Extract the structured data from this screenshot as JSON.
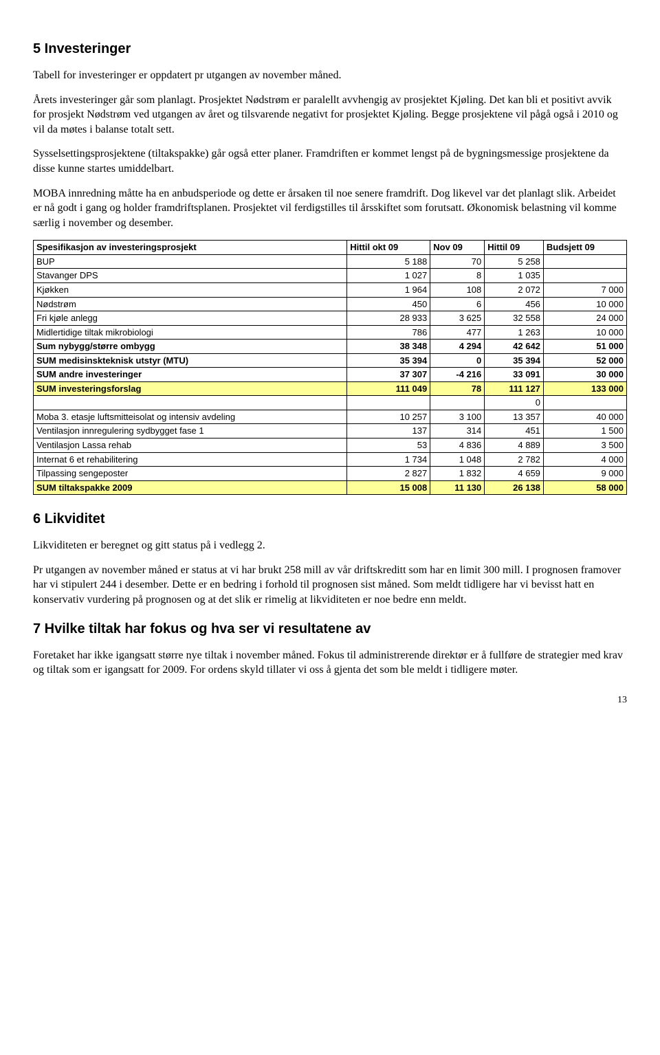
{
  "section5": {
    "title": "5 Investeringer",
    "p1": "Tabell for investeringer er oppdatert pr utgangen av november måned.",
    "p2": "Årets investeringer går som planlagt. Prosjektet Nødstrøm er paralellt avvhengig av prosjektet Kjøling. Det kan bli et positivt avvik for prosjekt Nødstrøm ved utgangen av året og tilsvarende negativt for prosjektet Kjøling. Begge prosjektene vil pågå også i 2010 og vil da møtes i balanse totalt sett.",
    "p3": "Sysselsettingsprosjektene (tiltakspakke) går også etter planer. Framdriften er kommet lengst på de bygningsmessige prosjektene da disse kunne startes umiddelbart.",
    "p4": "MOBA innredning måtte ha en anbudsperiode og dette er årsaken til noe senere framdrift. Dog likevel var det planlagt slik. Arbeidet er nå godt i gang og holder framdriftsplanen. Prosjektet vil ferdigstilles til årsskiftet som forutsatt. Økonomisk belastning vil komme særlig i november og desember."
  },
  "table": {
    "headers": [
      "Spesifikasjon av investeringsprosjekt",
      "Hittil okt 09",
      "Nov 09",
      "Hittil 09",
      "Budsjett 09"
    ],
    "rows": [
      {
        "label": "BUP",
        "v": [
          "5 188",
          "70",
          "5 258",
          ""
        ],
        "cls": ""
      },
      {
        "label": "Stavanger DPS",
        "v": [
          "1 027",
          "8",
          "1 035",
          ""
        ],
        "cls": ""
      },
      {
        "label": "Kjøkken",
        "v": [
          "1 964",
          "108",
          "2 072",
          "7 000"
        ],
        "cls": ""
      },
      {
        "label": "Nødstrøm",
        "v": [
          "450",
          "6",
          "456",
          "10 000"
        ],
        "cls": ""
      },
      {
        "label": "Fri kjøle anlegg",
        "v": [
          "28 933",
          "3 625",
          "32 558",
          "24 000"
        ],
        "cls": ""
      },
      {
        "label": "Midlertidige tiltak mikrobiologi",
        "v": [
          "786",
          "477",
          "1 263",
          "10 000"
        ],
        "cls": ""
      },
      {
        "label": "Sum nybygg/større ombygg",
        "v": [
          "38 348",
          "4 294",
          "42 642",
          "51 000"
        ],
        "cls": "bold"
      },
      {
        "label": "SUM medisinskteknisk utstyr (MTU)",
        "v": [
          "35 394",
          "0",
          "35 394",
          "52 000"
        ],
        "cls": "bold"
      },
      {
        "label": "SUM andre investeringer",
        "v": [
          "37 307",
          "-4 216",
          "33 091",
          "30 000"
        ],
        "cls": "bold"
      },
      {
        "label": "SUM investeringsforslag",
        "v": [
          "111 049",
          "78",
          "111 127",
          "133 000"
        ],
        "cls": "yellow"
      },
      {
        "label": "",
        "v": [
          "",
          "",
          "0",
          ""
        ],
        "cls": ""
      },
      {
        "label": "Moba 3. etasje luftsmitteisolat og intensiv avdeling",
        "v": [
          "10 257",
          "3 100",
          "13 357",
          "40 000"
        ],
        "cls": ""
      },
      {
        "label": "Ventilasjon innregulering sydbygget fase 1",
        "v": [
          "137",
          "314",
          "451",
          "1 500"
        ],
        "cls": ""
      },
      {
        "label": "Ventilasjon Lassa rehab",
        "v": [
          "53",
          "4 836",
          "4 889",
          "3 500"
        ],
        "cls": ""
      },
      {
        "label": "Internat 6 et rehabilitering",
        "v": [
          "1 734",
          "1 048",
          "2 782",
          "4 000"
        ],
        "cls": ""
      },
      {
        "label": "Tilpassing sengeposter",
        "v": [
          "2 827",
          "1 832",
          "4 659",
          "9 000"
        ],
        "cls": ""
      },
      {
        "label": "SUM tiltakspakke 2009",
        "v": [
          "15 008",
          "11 130",
          "26 138",
          "58 000"
        ],
        "cls": "yellow"
      }
    ]
  },
  "section6": {
    "title": "6 Likviditet",
    "p1": "Likviditeten er beregnet og gitt status på i vedlegg 2.",
    "p2": "Pr utgangen av november måned er status at vi har brukt 258 mill av vår driftskreditt som har en limit 300 mill. I prognosen framover har vi stipulert 244 i desember. Dette er en bedring i forhold til prognosen sist måned.  Som meldt tidligere har vi bevisst hatt en konservativ vurdering på prognosen og at det slik er rimelig at likviditeten er noe bedre enn meldt."
  },
  "section7": {
    "title": "7 Hvilke tiltak har fokus og hva ser vi resultatene av",
    "p1": "Foretaket har ikke igangsatt større nye tiltak i november måned. Fokus til administrerende direktør er å fullføre de strategier med krav og tiltak som er igangsatt for 2009.  For ordens skyld tillater vi oss å gjenta det som ble meldt i tidligere møter."
  },
  "pagenum": "13"
}
